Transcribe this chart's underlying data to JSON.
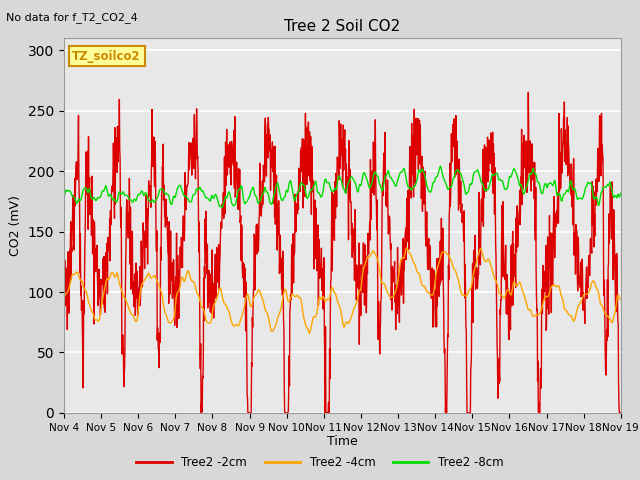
{
  "title": "Tree 2 Soil CO2",
  "subtitle": "No data for f_T2_CO2_4",
  "ylabel": "CO2 (mV)",
  "xlabel": "Time",
  "legend_label_2cm": "Tree2 -2cm",
  "legend_label_4cm": "Tree2 -4cm",
  "legend_label_8cm": "Tree2 -8cm",
  "color_2cm": "#dd0000",
  "color_4cm": "#ffa500",
  "color_8cm": "#00dd00",
  "ylim": [
    0,
    310
  ],
  "yticks": [
    0,
    50,
    100,
    150,
    200,
    250,
    300
  ],
  "xtick_labels": [
    "Nov 4",
    "Nov 5",
    "Nov 6",
    "Nov 7",
    "Nov 8",
    "Nov 9",
    "Nov 10",
    "Nov 11",
    "Nov 12",
    "Nov 13",
    "Nov 14",
    "Nov 15",
    "Nov 16",
    "Nov 17",
    "Nov 18",
    "Nov 19"
  ],
  "plot_bg_color": "#e8e8e8",
  "fig_bg_color": "#d8d8d8",
  "annotation_text": "TZ_soilco2",
  "annotation_bg": "#ffff99",
  "annotation_border": "#cc8800",
  "line_width": 1.0
}
